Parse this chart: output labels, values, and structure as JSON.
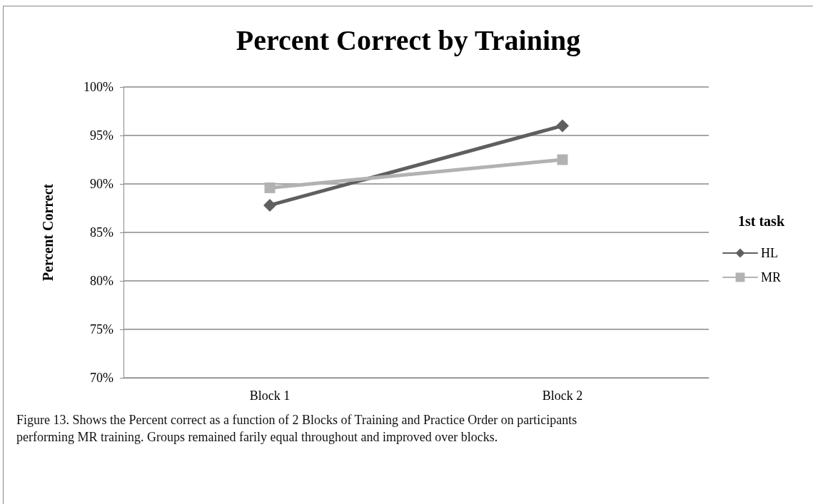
{
  "chart_data": {
    "type": "line",
    "title": "Percent Correct by Training",
    "ylabel": "Percent Correct",
    "legend_title": "1st task",
    "categories": [
      "Block 1",
      "Block 2"
    ],
    "series": [
      {
        "name": "HL",
        "color": "#5f5f5f",
        "values": [
          87.8,
          96.0
        ],
        "marker": "diamond"
      },
      {
        "name": "MR",
        "color": "#b2b2b2",
        "values": [
          89.6,
          92.5
        ],
        "marker": "square"
      }
    ],
    "ylim": [
      70,
      100
    ],
    "yticks": [
      {
        "value": 70,
        "label": "70%"
      },
      {
        "value": 75,
        "label": "75%"
      },
      {
        "value": 80,
        "label": "80%"
      },
      {
        "value": 85,
        "label": "85%"
      },
      {
        "value": 90,
        "label": "90%"
      },
      {
        "value": 95,
        "label": "95%"
      },
      {
        "value": 100,
        "label": "100%"
      }
    ],
    "grid": "y",
    "legend": "right",
    "line_style": "solid",
    "annotations": [
      "Figure 13. Shows the Percent correct as a function of 2 Blocks of Training and Practice Order on participants performing MR training. Groups remained farily equal throughout and improved over blocks."
    ]
  }
}
